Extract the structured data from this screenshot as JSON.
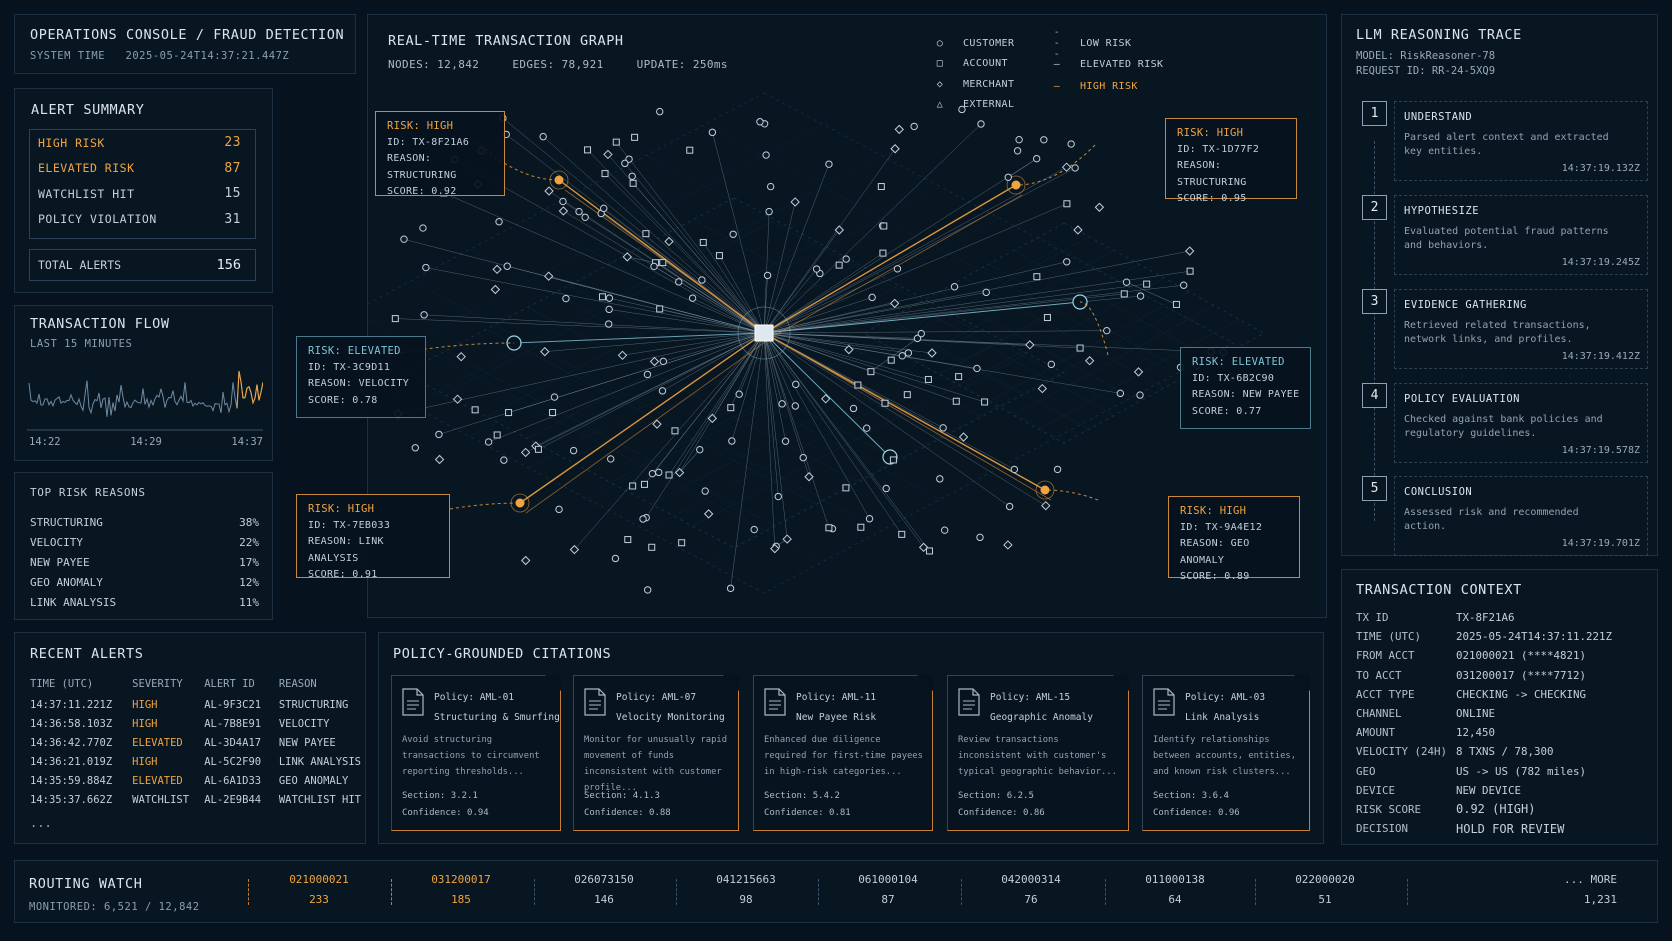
{
  "header": {
    "title": "OPERATIONS CONSOLE / FRAUD DETECTION",
    "system_time_label": "SYSTEM TIME",
    "system_time": "2025-05-24T14:37:21.447Z"
  },
  "alert_summary": {
    "title": "ALERT SUMMARY",
    "rows": [
      {
        "label": "HIGH RISK",
        "value": "23"
      },
      {
        "label": "ELEVATED RISK",
        "value": "87"
      },
      {
        "label": "WATCHLIST HIT",
        "value": "15"
      },
      {
        "label": "POLICY VIOLATION",
        "value": "31"
      }
    ],
    "total_label": "TOTAL ALERTS",
    "total_value": "156"
  },
  "transaction_flow": {
    "title": "TRANSACTION FLOW",
    "subtitle": "LAST 15 MINUTES",
    "ticks": [
      "14:22",
      "14:29",
      "14:37"
    ]
  },
  "top_risk_reasons": {
    "title": "TOP RISK REASONS",
    "rows": [
      {
        "label": "STRUCTURING",
        "value": "38%"
      },
      {
        "label": "VELOCITY",
        "value": "22%"
      },
      {
        "label": "NEW PAYEE",
        "value": "17%"
      },
      {
        "label": "GEO ANOMALY",
        "value": "12%"
      },
      {
        "label": "LINK ANALYSIS",
        "value": "11%"
      }
    ]
  },
  "recent_alerts": {
    "title": "RECENT ALERTS",
    "columns": [
      "TIME (UTC)",
      "SEVERITY",
      "ALERT ID",
      "REASON"
    ],
    "rows": [
      {
        "time": "14:37:11.221Z",
        "severity": "HIGH",
        "id": "AL-9F3C21",
        "reason": "STRUCTURING"
      },
      {
        "time": "14:36:58.103Z",
        "severity": "HIGH",
        "id": "AL-7B8E91",
        "reason": "VELOCITY"
      },
      {
        "time": "14:36:42.770Z",
        "severity": "ELEVATED",
        "id": "AL-3D4A17",
        "reason": "NEW PAYEE"
      },
      {
        "time": "14:36:21.019Z",
        "severity": "HIGH",
        "id": "AL-5C2F90",
        "reason": "LINK ANALYSIS"
      },
      {
        "time": "14:35:59.884Z",
        "severity": "ELEVATED",
        "id": "AL-6A1D33",
        "reason": "GEO ANOMALY"
      },
      {
        "time": "14:35:37.662Z",
        "severity": "WATCHLIST",
        "id": "AL-2E9B44",
        "reason": "WATCHLIST HIT"
      }
    ],
    "more": "..."
  },
  "graph": {
    "title": "REAL-TIME TRANSACTION GRAPH",
    "nodes": "NODES: 12,842",
    "edges": "EDGES: 78,921",
    "update": "UPDATE: 250ms",
    "legend_nodes": [
      "CUSTOMER",
      "ACCOUNT",
      "MERCHANT",
      "EXTERNAL"
    ],
    "legend_risk": [
      "LOW RISK",
      "ELEVATED RISK",
      "HIGH RISK"
    ],
    "callouts": [
      {
        "risk": "RISK: HIGH",
        "id": "ID: TX-8F21A6",
        "reason": "REASON: STRUCTURING",
        "score": "SCORE: 0.92"
      },
      {
        "risk": "RISK: HIGH",
        "id": "ID: TX-1D77F2",
        "reason": "REASON: STRUCTURING",
        "score": "SCORE: 0.95"
      },
      {
        "risk": "RISK: ELEVATED",
        "id": "ID: TX-3C9D11",
        "reason": "REASON: VELOCITY",
        "score": "SCORE: 0.78"
      },
      {
        "risk": "RISK: ELEVATED",
        "id": "ID: TX-6B2C90",
        "reason": "REASON: NEW PAYEE",
        "score": "SCORE: 0.77"
      },
      {
        "risk": "RISK: HIGH",
        "id": "ID: TX-7EB033",
        "reason": "REASON: LINK ANALYSIS",
        "score": "SCORE: 0.91"
      },
      {
        "risk": "RISK: HIGH",
        "id": "ID: TX-9A4E12",
        "reason": "REASON: GEO ANOMALY",
        "score": "SCORE: 0.89"
      }
    ]
  },
  "llm_trace": {
    "title": "LLM REASONING TRACE",
    "model": "MODEL: RiskReasoner-78",
    "request": "REQUEST ID: RR-24-5XQ9",
    "steps": [
      {
        "num": "1",
        "name": "UNDERSTAND",
        "desc": "Parsed alert context and extracted key entities.",
        "time": "14:37:19.132Z"
      },
      {
        "num": "2",
        "name": "HYPOTHESIZE",
        "desc": "Evaluated potential fraud patterns and behaviors.",
        "time": "14:37:19.245Z"
      },
      {
        "num": "3",
        "name": "EVIDENCE GATHERING",
        "desc": "Retrieved related transactions, network links, and profiles.",
        "time": "14:37:19.412Z"
      },
      {
        "num": "4",
        "name": "POLICY EVALUATION",
        "desc": "Checked against bank policies and regulatory guidelines.",
        "time": "14:37:19.578Z"
      },
      {
        "num": "5",
        "name": "CONCLUSION",
        "desc": "Assessed risk and recommended action.",
        "time": "14:37:19.701Z"
      }
    ]
  },
  "transaction_context": {
    "title": "TRANSACTION CONTEXT",
    "rows": [
      {
        "k": "TX ID",
        "v": "TX-8F21A6"
      },
      {
        "k": "TIME (UTC)",
        "v": "2025-05-24T14:37:11.221Z"
      },
      {
        "k": "FROM ACCT",
        "v": "021000021 (****4821)"
      },
      {
        "k": "TO ACCT",
        "v": "031200017 (****7712)"
      },
      {
        "k": "ACCT TYPE",
        "v": "CHECKING -> CHECKING"
      },
      {
        "k": "CHANNEL",
        "v": "ONLINE"
      },
      {
        "k": "AMOUNT",
        "v": "12,450"
      },
      {
        "k": "VELOCITY (24H)",
        "v": "8 TXNS  / 78,300"
      },
      {
        "k": "GEO",
        "v": "US -> US (782 miles)"
      },
      {
        "k": "DEVICE",
        "v": "NEW DEVICE"
      }
    ],
    "risk_label": "RISK SCORE",
    "risk_value": "0.92 (HIGH)",
    "decision_label": "DECISION",
    "decision_value": "HOLD FOR REVIEW"
  },
  "citations": {
    "title": "POLICY-GROUNDED CITATIONS",
    "cards": [
      {
        "policy": "Policy: AML-01",
        "name": "Structuring & Smurfing",
        "desc": "Avoid structuring transactions to circumvent reporting thresholds...",
        "section": "Section: 3.2.1",
        "confidence": "Confidence: 0.94"
      },
      {
        "policy": "Policy: AML-07",
        "name": "Velocity Monitoring",
        "desc": "Monitor for unusually rapid movement of funds inconsistent with customer profile...",
        "section": "Section: 4.1.3",
        "confidence": "Confidence: 0.88"
      },
      {
        "policy": "Policy: AML-11",
        "name": "New Payee Risk",
        "desc": "Enhanced due diligence required for first-time payees in high-risk categories...",
        "section": "Section: 5.4.2",
        "confidence": "Confidence: 0.81"
      },
      {
        "policy": "Policy: AML-15",
        "name": "Geographic Anomaly",
        "desc": "Review transactions inconsistent with customer's typical geographic behavior...",
        "section": "Section: 6.2.5",
        "confidence": "Confidence: 0.86"
      },
      {
        "policy": "Policy: AML-03",
        "name": "Link Analysis",
        "desc": "Identify relationships between accounts, entities, and known risk clusters...",
        "section": "Section: 3.6.4",
        "confidence": "Confidence: 0.96"
      }
    ]
  },
  "routing": {
    "title": "ROUTING WATCH",
    "monitored": "MONITORED: 6,521 / 12,842",
    "items": [
      {
        "routing": "021000021",
        "count": "233"
      },
      {
        "routing": "031200017",
        "count": "185"
      },
      {
        "routing": "026073150",
        "count": "146"
      },
      {
        "routing": "041215663",
        "count": "98"
      },
      {
        "routing": "061000104",
        "count": "87"
      },
      {
        "routing": "042000314",
        "count": "76"
      },
      {
        "routing": "011000138",
        "count": "64"
      },
      {
        "routing": "022000020",
        "count": "51"
      }
    ],
    "more_label": "... MORE",
    "more_count": "1,231"
  },
  "colors": {
    "high": "#f0a440",
    "elevated": "#7ec4d6",
    "low": "#9aa9b6",
    "background": "#06121d"
  }
}
